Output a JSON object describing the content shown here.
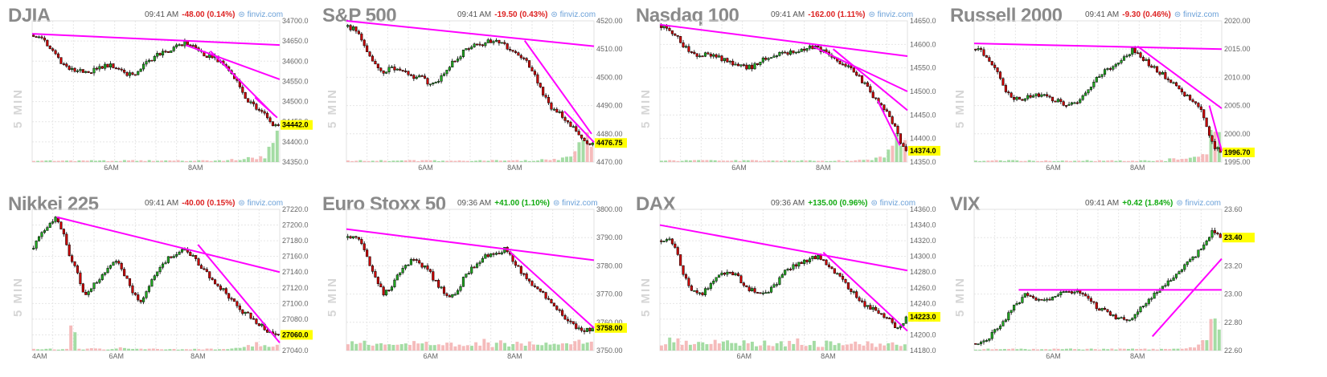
{
  "page": {
    "tile_label": "5 MIN",
    "source": "⊜ finviz.com"
  },
  "colors": {
    "up": "#22aa22",
    "down": "#cc0000",
    "trend": "#ff00ff",
    "vol_up": "#9ad89a",
    "vol_down": "#f4b4b4",
    "price_tag": "#ffff00",
    "grid": "#e6e6e6",
    "neg": "#dd2222",
    "pos": "#11aa11"
  },
  "chart_data": [
    {
      "type": "candlestick",
      "title": "DJIA",
      "time": "09:41 AM",
      "change": "-48.00 (0.14%)",
      "direction": "down",
      "ylim": [
        34350,
        34700
      ],
      "yticks": [
        "34700.0",
        "34650.0",
        "34600.0",
        "34550.0",
        "34500.0",
        "34450.0",
        "34400.0",
        "34350.0"
      ],
      "xticks": [
        [
          "6AM",
          0.32
        ],
        [
          "8AM",
          0.66
        ]
      ],
      "last": "34442.0",
      "path": [
        34665,
        34660,
        34640,
        34620,
        34595,
        34580,
        34575,
        34578,
        34575,
        34580,
        34590,
        34588,
        34580,
        34565,
        34570,
        34585,
        34600,
        34615,
        34620,
        34630,
        34640,
        34645,
        34640,
        34625,
        34615,
        34610,
        34600,
        34580,
        34560,
        34520,
        34500,
        34480,
        34470,
        34445,
        34442
      ],
      "trend": [
        [
          0.0,
          34668,
          1.0,
          34640
        ],
        [
          0.62,
          34640,
          1.0,
          34555
        ],
        [
          0.72,
          34625,
          0.98,
          34465
        ],
        [
          0.9,
          34510,
          0.99,
          34460
        ]
      ],
      "volume": [
        1,
        1,
        1,
        1,
        1,
        1,
        1,
        1,
        1,
        1,
        1,
        1,
        1,
        1,
        1,
        1,
        1,
        1,
        1,
        1,
        1,
        1,
        1,
        1,
        1,
        1,
        1,
        1,
        2,
        2,
        3,
        3,
        3,
        12,
        20
      ]
    },
    {
      "type": "candlestick",
      "title": "S&P 500",
      "time": "09:41 AM",
      "change": "-19.50 (0.43%)",
      "direction": "down",
      "ylim": [
        4470,
        4520
      ],
      "yticks": [
        "4520.00",
        "4510.00",
        "4500.00",
        "4490.00",
        "4480.00",
        "4470.00"
      ],
      "xticks": [
        [
          "6AM",
          0.32
        ],
        [
          "8AM",
          0.68
        ]
      ],
      "last": "4476.75",
      "path": [
        4518,
        4517,
        4513,
        4508,
        4503,
        4502,
        4503,
        4503,
        4503,
        4500,
        4501,
        4498,
        4497,
        4500,
        4504,
        4506,
        4509,
        4511,
        4512,
        4512,
        4513,
        4512,
        4511,
        4509,
        4507,
        4505,
        4500,
        4495,
        4490,
        4488,
        4486,
        4483,
        4480,
        4477,
        4476.75
      ],
      "trend": [
        [
          0.0,
          4520,
          1.0,
          4511
        ],
        [
          0.72,
          4513,
          0.99,
          4480
        ],
        [
          0.88,
          4488,
          1.0,
          4477
        ]
      ],
      "volume": [
        1,
        1,
        1,
        1,
        1,
        1,
        1,
        1,
        1,
        1,
        1,
        1,
        1,
        1,
        1,
        1,
        1,
        1,
        1,
        1,
        1,
        1,
        1,
        1,
        1,
        1,
        1,
        2,
        2,
        2,
        3,
        3,
        12,
        20,
        16
      ]
    },
    {
      "type": "candlestick",
      "title": "Nasdaq 100",
      "time": "09:41 AM",
      "change": "-162.00 (1.11%)",
      "direction": "down",
      "ylim": [
        14350,
        14650
      ],
      "yticks": [
        "14650.0",
        "14600.0",
        "14550.0",
        "14500.0",
        "14450.0",
        "14400.0",
        "14350.0"
      ],
      "xticks": [
        [
          "6AM",
          0.32
        ],
        [
          "8AM",
          0.66
        ]
      ],
      "last": "14374.0",
      "path": [
        14640,
        14635,
        14620,
        14600,
        14580,
        14575,
        14578,
        14580,
        14572,
        14565,
        14560,
        14555,
        14550,
        14555,
        14565,
        14575,
        14580,
        14580,
        14582,
        14585,
        14590,
        14595,
        14590,
        14580,
        14570,
        14560,
        14550,
        14540,
        14520,
        14500,
        14480,
        14460,
        14440,
        14400,
        14374
      ],
      "trend": [
        [
          0.0,
          14642,
          1.0,
          14575
        ],
        [
          0.62,
          14595,
          1.0,
          14500
        ],
        [
          0.7,
          14590,
          1.0,
          14460
        ],
        [
          0.88,
          14480,
          0.97,
          14385
        ]
      ],
      "volume": [
        1,
        1,
        1,
        1,
        1,
        1,
        1,
        1,
        1,
        1,
        1,
        1,
        1,
        1,
        1,
        1,
        1,
        1,
        1,
        1,
        1,
        1,
        1,
        1,
        1,
        1,
        1,
        1,
        2,
        2,
        3,
        3,
        8,
        18,
        16
      ]
    },
    {
      "type": "candlestick",
      "title": "Russell 2000",
      "time": "09:41 AM",
      "change": "-9.30 (0.46%)",
      "direction": "down",
      "ylim": [
        1995,
        2020
      ],
      "yticks": [
        "2020.00",
        "2015.00",
        "2010.00",
        "2005.00",
        "2000.00",
        "1995.00"
      ],
      "xticks": [
        [
          "6AM",
          0.32
        ],
        [
          "8AM",
          0.66
        ]
      ],
      "last": "1996.70",
      "path": [
        2015,
        2014.5,
        2013,
        2011,
        2008,
        2006.5,
        2006,
        2006.5,
        2007,
        2007,
        2006.5,
        2006,
        2005.5,
        2005,
        2005.5,
        2006.5,
        2008,
        2010,
        2011,
        2012,
        2013,
        2014,
        2015,
        2013.5,
        2012.5,
        2011.5,
        2010.5,
        2009.5,
        2008,
        2007,
        2006,
        2005,
        2002,
        1998,
        1996.7
      ],
      "trend": [
        [
          0.0,
          2016,
          1.0,
          2015
        ],
        [
          0.66,
          2015.5,
          1.0,
          2004.5
        ],
        [
          0.95,
          2005,
          1.0,
          1997
        ]
      ],
      "volume": [
        1,
        1,
        1,
        1,
        1,
        1,
        1,
        1,
        1,
        1,
        1,
        1,
        1,
        1,
        1,
        1,
        1,
        1,
        1,
        1,
        1,
        1,
        1,
        1,
        1,
        1,
        1,
        2,
        2,
        2,
        3,
        3,
        6,
        20,
        18
      ]
    },
    {
      "type": "candlestick",
      "title": "Nikkei 225",
      "time": "09:41 AM",
      "change": "-40.00 (0.15%)",
      "direction": "down",
      "ylim": [
        27040,
        27220
      ],
      "yticks": [
        "27220.0",
        "27200.0",
        "27180.0",
        "27160.0",
        "27140.0",
        "27120.0",
        "27100.0",
        "27080.0",
        "27060.0",
        "27040.0"
      ],
      "xticks": [
        [
          "4AM",
          0.0
        ],
        [
          "6AM",
          0.34
        ],
        [
          "8AM",
          0.67
        ]
      ],
      "last": "27060.0",
      "path": [
        27170,
        27190,
        27200,
        27210,
        27195,
        27160,
        27140,
        27110,
        27120,
        27130,
        27140,
        27155,
        27150,
        27130,
        27110,
        27100,
        27120,
        27140,
        27150,
        27160,
        27165,
        27170,
        27160,
        27150,
        27140,
        27130,
        27120,
        27110,
        27100,
        27090,
        27085,
        27075,
        27070,
        27060,
        27060
      ],
      "trend": [
        [
          0.1,
          27210,
          1.0,
          27140
        ],
        [
          0.67,
          27175,
          1.0,
          27050
        ]
      ],
      "volume": [
        1,
        1,
        1,
        1,
        1,
        14,
        1,
        1,
        2,
        1,
        1,
        1,
        2,
        1,
        1,
        1,
        1,
        1,
        1,
        1,
        1,
        1,
        1,
        1,
        1,
        1,
        1,
        1,
        2,
        2,
        3,
        6,
        4,
        3,
        5
      ]
    },
    {
      "type": "candlestick",
      "title": "Euro Stoxx 50",
      "time": "09:36 AM",
      "change": "+41.00 (1.10%)",
      "direction": "up",
      "ylim": [
        3750,
        3800
      ],
      "yticks": [
        "3800.00",
        "3790.00",
        "3780.00",
        "3770.00",
        "3760.00",
        "3750.00"
      ],
      "xticks": [
        [
          "6AM",
          0.34
        ],
        [
          "8AM",
          0.68
        ]
      ],
      "last": "3758.00",
      "path": [
        3790,
        3791,
        3788,
        3780,
        3775,
        3770,
        3772,
        3777,
        3780,
        3782,
        3781,
        3779,
        3775,
        3772,
        3768,
        3770,
        3775,
        3779,
        3781,
        3783,
        3784,
        3785,
        3786,
        3782,
        3778,
        3775,
        3772,
        3770,
        3768,
        3765,
        3762,
        3760,
        3758,
        3757,
        3758
      ],
      "trend": [
        [
          0.0,
          3793,
          1.0,
          3782
        ],
        [
          0.66,
          3785,
          1.0,
          3758
        ]
      ],
      "volume": [
        5,
        6,
        5,
        4,
        5,
        6,
        4,
        5,
        4,
        5,
        4,
        5,
        6,
        4,
        5,
        4,
        5,
        4,
        5,
        6,
        4,
        5,
        4,
        5,
        4,
        5,
        4,
        5,
        4,
        5,
        4,
        5,
        6,
        4,
        5
      ]
    },
    {
      "type": "candlestick",
      "title": "DAX",
      "time": "09:36 AM",
      "change": "+135.00 (0.96%)",
      "direction": "up",
      "ylim": [
        14180,
        14360
      ],
      "yticks": [
        "14360.0",
        "14340.0",
        "14320.0",
        "14300.0",
        "14280.0",
        "14260.0",
        "14240.0",
        "14220.0",
        "14200.0",
        "14180.0"
      ],
      "xticks": [
        [
          "6AM",
          0.34
        ],
        [
          "8AM",
          0.68
        ]
      ],
      "last": "14223.0",
      "path": [
        14320,
        14325,
        14310,
        14280,
        14260,
        14250,
        14255,
        14265,
        14275,
        14280,
        14278,
        14270,
        14260,
        14255,
        14250,
        14255,
        14265,
        14280,
        14285,
        14290,
        14295,
        14298,
        14300,
        14290,
        14280,
        14270,
        14260,
        14250,
        14240,
        14235,
        14230,
        14225,
        14215,
        14205,
        14223
      ],
      "trend": [
        [
          0.0,
          14340,
          1.0,
          14282
        ],
        [
          0.66,
          14305,
          1.0,
          14205
        ]
      ],
      "volume": [
        5,
        7,
        6,
        5,
        6,
        5,
        4,
        6,
        5,
        5,
        4,
        5,
        6,
        4,
        5,
        4,
        5,
        4,
        5,
        6,
        4,
        5,
        4,
        5,
        4,
        5,
        4,
        5,
        4,
        5,
        4,
        5,
        6,
        4,
        5
      ]
    },
    {
      "type": "candlestick",
      "title": "VIX",
      "time": "09:41 AM",
      "change": "+0.42 (1.84%)",
      "direction": "up",
      "ylim": [
        22.6,
        23.6
      ],
      "yticks": [
        "23.60",
        "23.40",
        "23.20",
        "23.00",
        "22.80",
        "22.60"
      ],
      "xticks": [
        [
          "6AM",
          0.32
        ],
        [
          "8AM",
          0.66
        ]
      ],
      "last": "23.40",
      "path": [
        22.65,
        22.66,
        22.7,
        22.75,
        22.8,
        22.9,
        22.95,
        23.0,
        22.98,
        22.95,
        22.95,
        23.0,
        23.0,
        23.02,
        23.02,
        22.98,
        22.95,
        22.9,
        22.88,
        22.85,
        22.82,
        22.82,
        22.85,
        22.9,
        22.95,
        23.0,
        23.05,
        23.1,
        23.15,
        23.2,
        23.25,
        23.3,
        23.38,
        23.45,
        23.4
      ],
      "trend": [
        [
          0.18,
          23.03,
          1.0,
          23.03
        ],
        [
          0.72,
          22.7,
          1.0,
          23.25
        ]
      ],
      "volume": [
        1,
        1,
        1,
        1,
        1,
        1,
        1,
        1,
        1,
        1,
        1,
        1,
        1,
        1,
        1,
        1,
        1,
        1,
        1,
        1,
        1,
        1,
        1,
        1,
        1,
        1,
        1,
        1,
        1,
        2,
        2,
        3,
        6,
        18,
        14
      ]
    }
  ]
}
